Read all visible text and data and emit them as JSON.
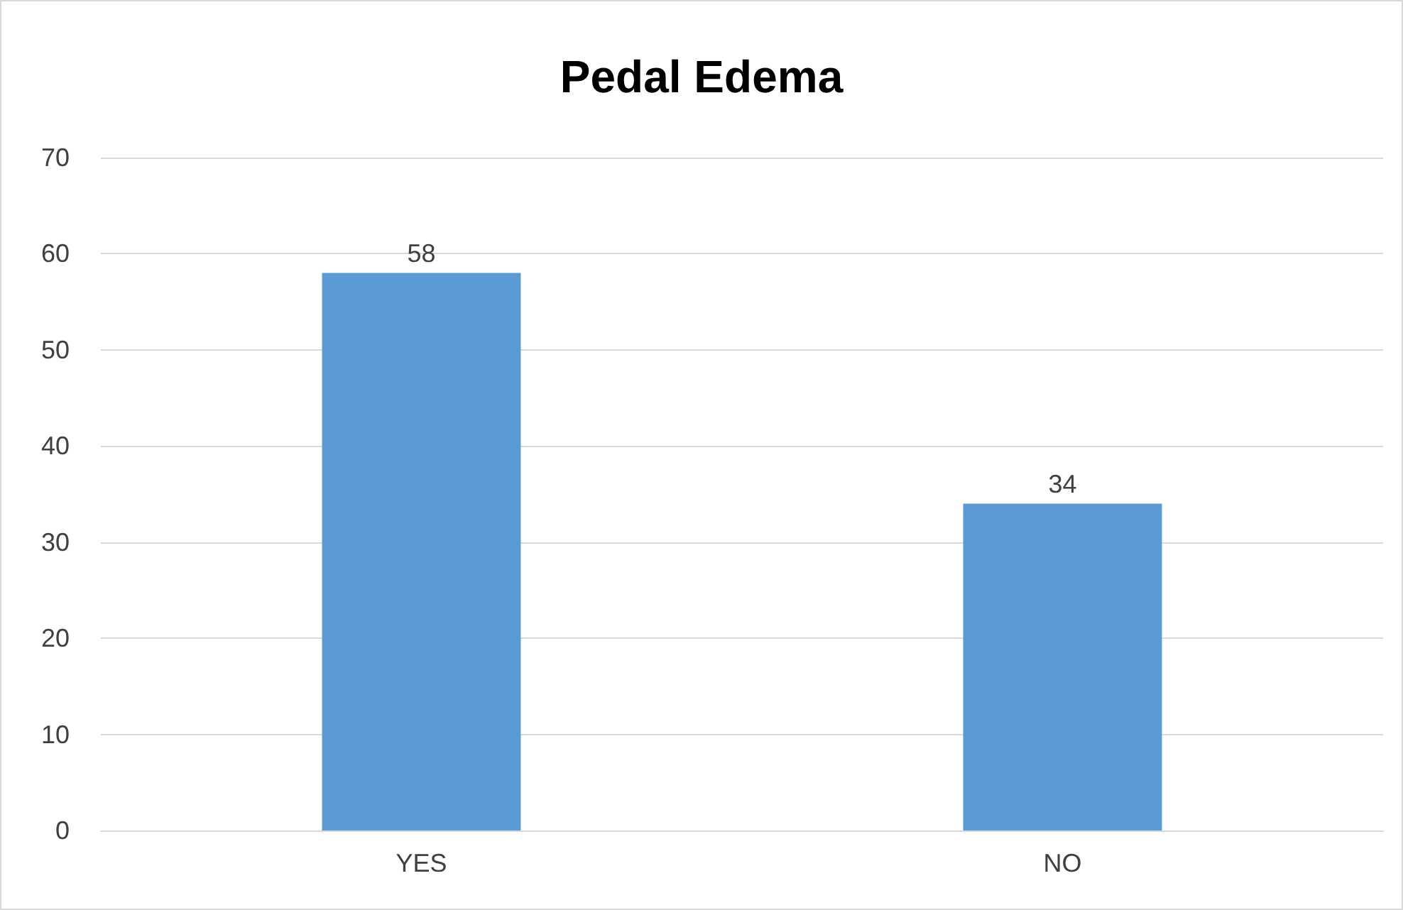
{
  "chart_data": {
    "type": "bar",
    "title": "Pedal Edema",
    "categories": [
      "YES",
      "NO"
    ],
    "values": [
      58,
      34
    ],
    "color": "#5b9bd5",
    "ylim": [
      0,
      70
    ],
    "yticks": [
      0,
      10,
      20,
      30,
      40,
      50,
      60,
      70
    ],
    "grid": "y",
    "data_labels": true
  }
}
